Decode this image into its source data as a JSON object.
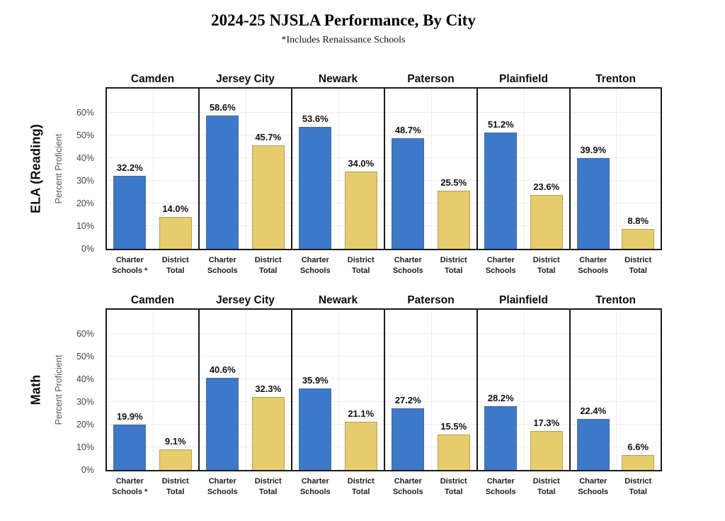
{
  "title": "2024-25 NJSLA Performance, By City",
  "subtitle": "*Includes Renaissance Schools",
  "colors": {
    "charter_bar": "#3E78C8",
    "district_bar": "#E6CC6B",
    "panel_border": "#1a1a1a",
    "grid_line": "#ececec"
  },
  "chart_data": {
    "type": "bar",
    "layout": "small-multiples: 2 subject rows x 6 city panels, 2 bars per panel",
    "title": "2024-25 NJSLA Performance, By City",
    "subtitle": "*Includes Renaissance Schools",
    "ylabel": "Percent Proficient",
    "ylim": [
      0,
      71
    ],
    "grid": true,
    "legend_position": "none",
    "categories": [
      "Charter Schools",
      "District Total"
    ],
    "yticks": [
      {
        "label": "60%",
        "value": 60
      },
      {
        "label": "50%",
        "value": 50
      },
      {
        "label": "40%",
        "value": 40
      },
      {
        "label": "30%",
        "value": 30
      },
      {
        "label": "20%",
        "value": 20
      },
      {
        "label": "10%",
        "value": 10
      },
      {
        "label": "0%",
        "value": 0
      }
    ],
    "rows": [
      {
        "label": "ELA (Reading)",
        "cities": [
          {
            "name": "Camden",
            "charter": 32.2,
            "district": 14.0,
            "charter_value_label": "32.2%",
            "district_value_label": "14.0%",
            "charter_tick": [
              "Charter",
              "Schools *"
            ],
            "district_tick": [
              "District",
              "Total"
            ]
          },
          {
            "name": "Jersey City",
            "charter": 58.6,
            "district": 45.7,
            "charter_value_label": "58.6%",
            "district_value_label": "45.7%",
            "charter_tick": [
              "Charter",
              "Schools"
            ],
            "district_tick": [
              "District",
              "Total"
            ]
          },
          {
            "name": "Newark",
            "charter": 53.6,
            "district": 34.0,
            "charter_value_label": "53.6%",
            "district_value_label": "34.0%",
            "charter_tick": [
              "Charter",
              "Schools"
            ],
            "district_tick": [
              "District",
              "Total"
            ]
          },
          {
            "name": "Paterson",
            "charter": 48.7,
            "district": 25.5,
            "charter_value_label": "48.7%",
            "district_value_label": "25.5%",
            "charter_tick": [
              "Charter",
              "Schools"
            ],
            "district_tick": [
              "District",
              "Total"
            ]
          },
          {
            "name": "Plainfield",
            "charter": 51.2,
            "district": 23.6,
            "charter_value_label": "51.2%",
            "district_value_label": "23.6%",
            "charter_tick": [
              "Charter",
              "Schools"
            ],
            "district_tick": [
              "District",
              "Total"
            ]
          },
          {
            "name": "Trenton",
            "charter": 39.9,
            "district": 8.8,
            "charter_value_label": "39.9%",
            "district_value_label": "8.8%",
            "charter_tick": [
              "Charter",
              "Schools"
            ],
            "district_tick": [
              "District",
              "Total"
            ]
          }
        ]
      },
      {
        "label": "Math",
        "cities": [
          {
            "name": "Camden",
            "charter": 19.9,
            "district": 9.1,
            "charter_value_label": "19.9%",
            "district_value_label": "9.1%",
            "charter_tick": [
              "Charter",
              "Schools *"
            ],
            "district_tick": [
              "District",
              "Total"
            ]
          },
          {
            "name": "Jersey City",
            "charter": 40.6,
            "district": 32.3,
            "charter_value_label": "40.6%",
            "district_value_label": "32.3%",
            "charter_tick": [
              "Charter",
              "Schools"
            ],
            "district_tick": [
              "District",
              "Total"
            ]
          },
          {
            "name": "Newark",
            "charter": 35.9,
            "district": 21.1,
            "charter_value_label": "35.9%",
            "district_value_label": "21.1%",
            "charter_tick": [
              "Charter",
              "Schools"
            ],
            "district_tick": [
              "District",
              "Total"
            ]
          },
          {
            "name": "Paterson",
            "charter": 27.2,
            "district": 15.5,
            "charter_value_label": "27.2%",
            "district_value_label": "15.5%",
            "charter_tick": [
              "Charter",
              "Schools"
            ],
            "district_tick": [
              "District",
              "Total"
            ]
          },
          {
            "name": "Plainfield",
            "charter": 28.2,
            "district": 17.3,
            "charter_value_label": "28.2%",
            "district_value_label": "17.3%",
            "charter_tick": [
              "Charter",
              "Schools"
            ],
            "district_tick": [
              "District",
              "Total"
            ]
          },
          {
            "name": "Trenton",
            "charter": 22.4,
            "district": 6.6,
            "charter_value_label": "22.4%",
            "district_value_label": "6.6%",
            "charter_tick": [
              "Charter",
              "Schools"
            ],
            "district_tick": [
              "District",
              "Total"
            ]
          }
        ]
      }
    ]
  }
}
